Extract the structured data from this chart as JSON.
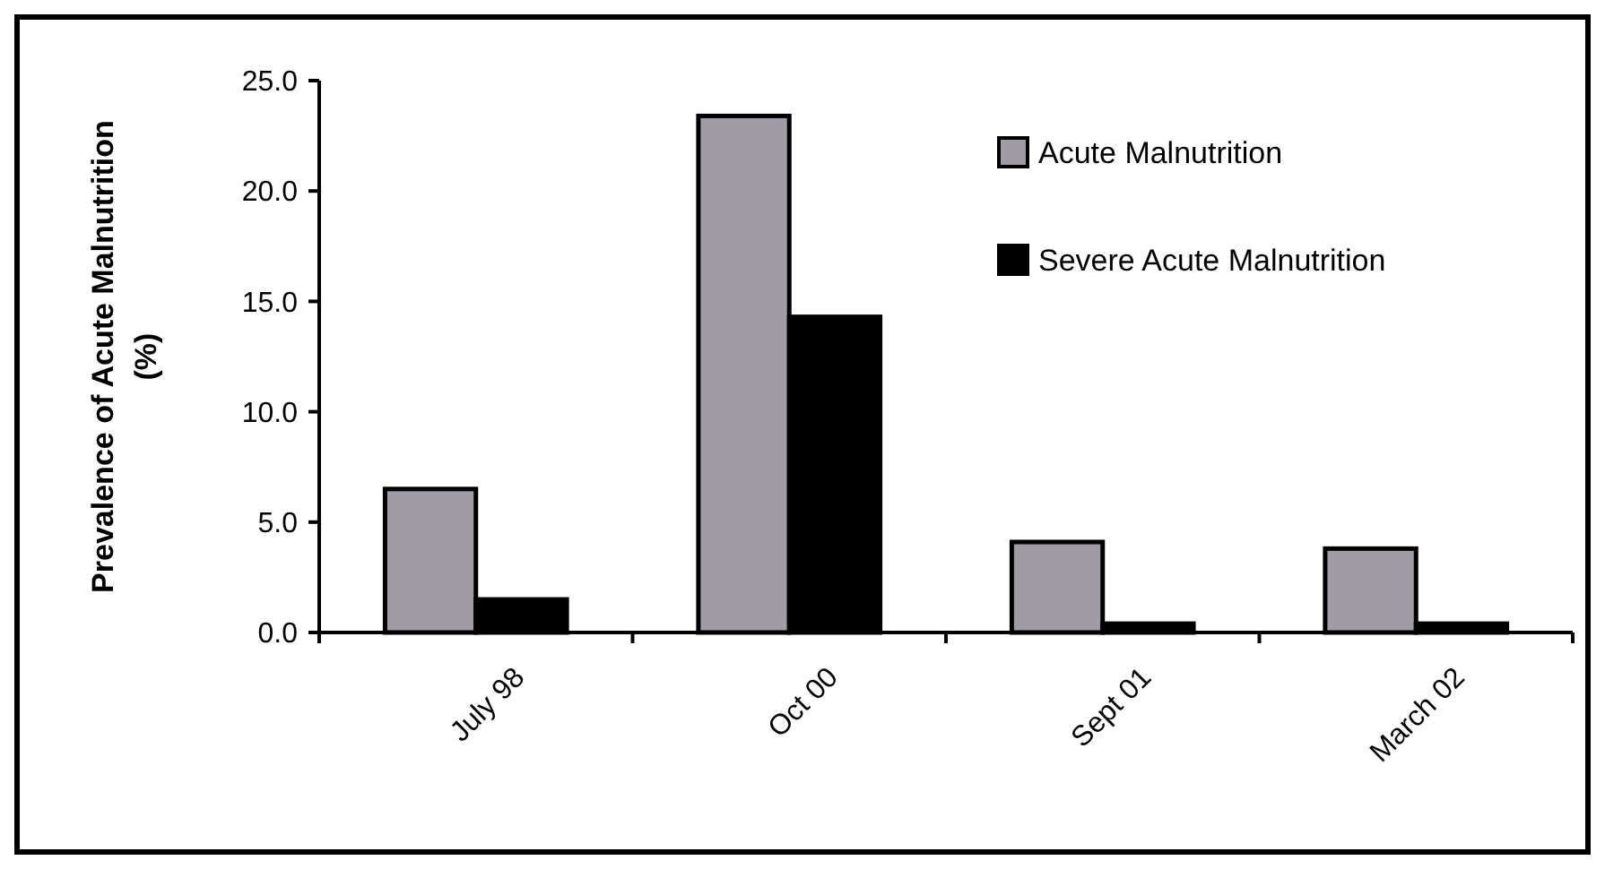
{
  "chart_data": {
    "type": "bar",
    "ylabel": "Prevalence of Acute Malnutrition (%)",
    "categories": [
      "July 98",
      "Oct 00",
      "Sept 01",
      "March 02"
    ],
    "series": [
      {
        "name": "Acute Malnutrition",
        "color": "#a09ca4",
        "values": [
          6.5,
          23.4,
          4.1,
          3.8
        ]
      },
      {
        "name": "Severe Acute Malnutrition",
        "color": "#000000",
        "values": [
          1.5,
          14.3,
          0.4,
          0.4
        ]
      }
    ],
    "ylim": [
      0,
      25
    ],
    "yticks": [
      {
        "value": 0,
        "label": "0.0"
      },
      {
        "value": 5,
        "label": "5.0"
      },
      {
        "value": 10,
        "label": "10.0"
      },
      {
        "value": 15,
        "label": "15.0"
      },
      {
        "value": 20,
        "label": "20.0"
      },
      {
        "value": 25,
        "label": "25.0"
      }
    ],
    "legend": "top right",
    "grid": false
  }
}
